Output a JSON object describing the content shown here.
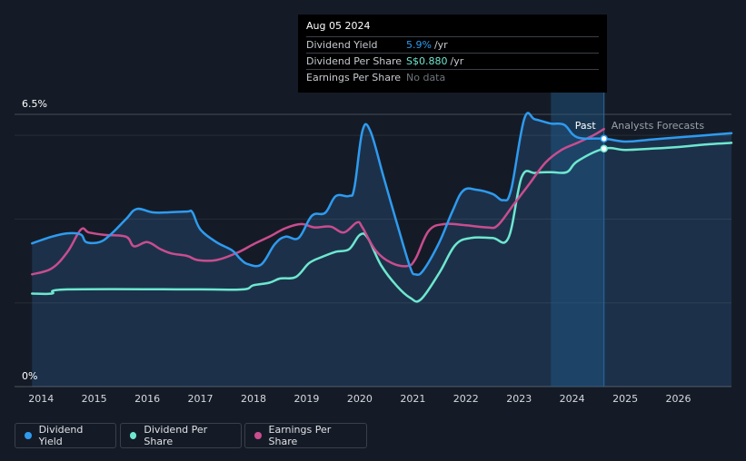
{
  "tooltip": {
    "date": "Aug 05 2024",
    "rows": [
      {
        "label": "Dividend Yield",
        "value": "5.9%",
        "unit": "/yr"
      },
      {
        "label": "Dividend Per Share",
        "value": "S$0.880",
        "unit": "/yr"
      },
      {
        "label": "Earnings Per Share",
        "value": "No data",
        "unit": ""
      }
    ]
  },
  "segments": {
    "past": "Past",
    "forecast": "Analysts Forecasts"
  },
  "legend": [
    {
      "label": "Dividend Yield",
      "color": "#2e9bf0"
    },
    {
      "label": "Dividend Per Share",
      "color": "#6ee7d0"
    },
    {
      "label": "Earnings Per Share",
      "color": "#c94d8f"
    }
  ],
  "chart_data": {
    "type": "line",
    "ylim": [
      0,
      6.5
    ],
    "y_tick_labels": [
      "6.5%",
      "0%"
    ],
    "x_tick_labels": [
      "2014",
      "2015",
      "2016",
      "2017",
      "2018",
      "2019",
      "2020",
      "2021",
      "2022",
      "2023",
      "2024",
      "2025",
      "2026"
    ],
    "xlim": [
      2013.5,
      2027.0
    ],
    "forecast_start": 2024.6,
    "highlight_start": 2023.6,
    "colors": {
      "dividend_yield": "#2e9bf0",
      "dividend_per_share": "#6ee7d0",
      "earnings_per_share": "#c94d8f"
    },
    "series": [
      {
        "name": "Dividend Yield",
        "points": [
          [
            2013.83,
            3.42
          ],
          [
            2014.2,
            3.58
          ],
          [
            2014.5,
            3.66
          ],
          [
            2014.75,
            3.63
          ],
          [
            2014.85,
            3.45
          ],
          [
            2015.1,
            3.45
          ],
          [
            2015.3,
            3.62
          ],
          [
            2015.6,
            4.0
          ],
          [
            2015.8,
            4.24
          ],
          [
            2016.1,
            4.16
          ],
          [
            2016.4,
            4.16
          ],
          [
            2016.75,
            4.18
          ],
          [
            2016.85,
            4.16
          ],
          [
            2017.0,
            3.75
          ],
          [
            2017.3,
            3.45
          ],
          [
            2017.6,
            3.25
          ],
          [
            2017.75,
            3.05
          ],
          [
            2017.9,
            2.92
          ],
          [
            2018.15,
            2.92
          ],
          [
            2018.4,
            3.4
          ],
          [
            2018.6,
            3.58
          ],
          [
            2018.85,
            3.55
          ],
          [
            2019.1,
            4.08
          ],
          [
            2019.35,
            4.15
          ],
          [
            2019.55,
            4.55
          ],
          [
            2019.8,
            4.55
          ],
          [
            2019.9,
            4.75
          ],
          [
            2020.05,
            6.1
          ],
          [
            2020.2,
            6.1
          ],
          [
            2020.45,
            5.0
          ],
          [
            2020.7,
            3.9
          ],
          [
            2020.95,
            2.85
          ],
          [
            2021.05,
            2.68
          ],
          [
            2021.2,
            2.78
          ],
          [
            2021.5,
            3.45
          ],
          [
            2021.75,
            4.2
          ],
          [
            2021.95,
            4.68
          ],
          [
            2022.2,
            4.7
          ],
          [
            2022.5,
            4.6
          ],
          [
            2022.7,
            4.45
          ],
          [
            2022.85,
            4.7
          ],
          [
            2023.1,
            6.4
          ],
          [
            2023.3,
            6.38
          ],
          [
            2023.6,
            6.28
          ],
          [
            2023.85,
            6.25
          ],
          [
            2024.1,
            5.95
          ],
          [
            2024.6,
            5.92
          ],
          [
            2025.0,
            5.85
          ],
          [
            2025.5,
            5.9
          ],
          [
            2026.0,
            5.95
          ],
          [
            2026.5,
            6.0
          ],
          [
            2027.0,
            6.05
          ]
        ]
      },
      {
        "name": "Dividend Per Share",
        "points": [
          [
            2013.83,
            2.22
          ],
          [
            2014.2,
            2.22
          ],
          [
            2014.5,
            2.32
          ],
          [
            2017.0,
            2.32
          ],
          [
            2017.8,
            2.32
          ],
          [
            2018.0,
            2.42
          ],
          [
            2018.3,
            2.48
          ],
          [
            2018.5,
            2.58
          ],
          [
            2018.8,
            2.62
          ],
          [
            2019.05,
            2.95
          ],
          [
            2019.3,
            3.1
          ],
          [
            2019.55,
            3.22
          ],
          [
            2019.8,
            3.28
          ],
          [
            2020.0,
            3.62
          ],
          [
            2020.15,
            3.55
          ],
          [
            2020.4,
            2.9
          ],
          [
            2020.7,
            2.4
          ],
          [
            2020.95,
            2.12
          ],
          [
            2021.15,
            2.08
          ],
          [
            2021.5,
            2.72
          ],
          [
            2021.8,
            3.38
          ],
          [
            2022.1,
            3.55
          ],
          [
            2022.5,
            3.55
          ],
          [
            2022.8,
            3.55
          ],
          [
            2023.05,
            5.0
          ],
          [
            2023.3,
            5.1
          ],
          [
            2023.6,
            5.12
          ],
          [
            2023.9,
            5.12
          ],
          [
            2024.1,
            5.38
          ],
          [
            2024.6,
            5.68
          ],
          [
            2025.0,
            5.65
          ],
          [
            2025.5,
            5.68
          ],
          [
            2026.0,
            5.72
          ],
          [
            2026.5,
            5.78
          ],
          [
            2027.0,
            5.82
          ]
        ]
      },
      {
        "name": "Earnings Per Share",
        "points": [
          [
            2013.83,
            2.68
          ],
          [
            2014.2,
            2.82
          ],
          [
            2014.5,
            3.22
          ],
          [
            2014.75,
            3.75
          ],
          [
            2014.9,
            3.68
          ],
          [
            2015.2,
            3.62
          ],
          [
            2015.6,
            3.58
          ],
          [
            2015.75,
            3.35
          ],
          [
            2016.0,
            3.45
          ],
          [
            2016.25,
            3.28
          ],
          [
            2016.45,
            3.18
          ],
          [
            2016.75,
            3.12
          ],
          [
            2016.95,
            3.02
          ],
          [
            2017.3,
            3.02
          ],
          [
            2017.7,
            3.2
          ],
          [
            2018.0,
            3.4
          ],
          [
            2018.3,
            3.58
          ],
          [
            2018.6,
            3.78
          ],
          [
            2018.9,
            3.88
          ],
          [
            2019.15,
            3.8
          ],
          [
            2019.45,
            3.82
          ],
          [
            2019.7,
            3.68
          ],
          [
            2019.95,
            3.92
          ],
          [
            2020.05,
            3.8
          ],
          [
            2020.3,
            3.25
          ],
          [
            2020.6,
            2.95
          ],
          [
            2020.9,
            2.88
          ],
          [
            2021.05,
            3.05
          ],
          [
            2021.3,
            3.72
          ],
          [
            2021.6,
            3.88
          ],
          [
            2022.0,
            3.85
          ],
          [
            2022.4,
            3.8
          ],
          [
            2022.6,
            3.85
          ],
          [
            2022.9,
            4.35
          ],
          [
            2023.2,
            4.85
          ],
          [
            2023.5,
            5.35
          ],
          [
            2023.8,
            5.65
          ],
          [
            2024.1,
            5.82
          ],
          [
            2024.4,
            6.0
          ],
          [
            2024.6,
            6.15
          ]
        ]
      }
    ]
  }
}
